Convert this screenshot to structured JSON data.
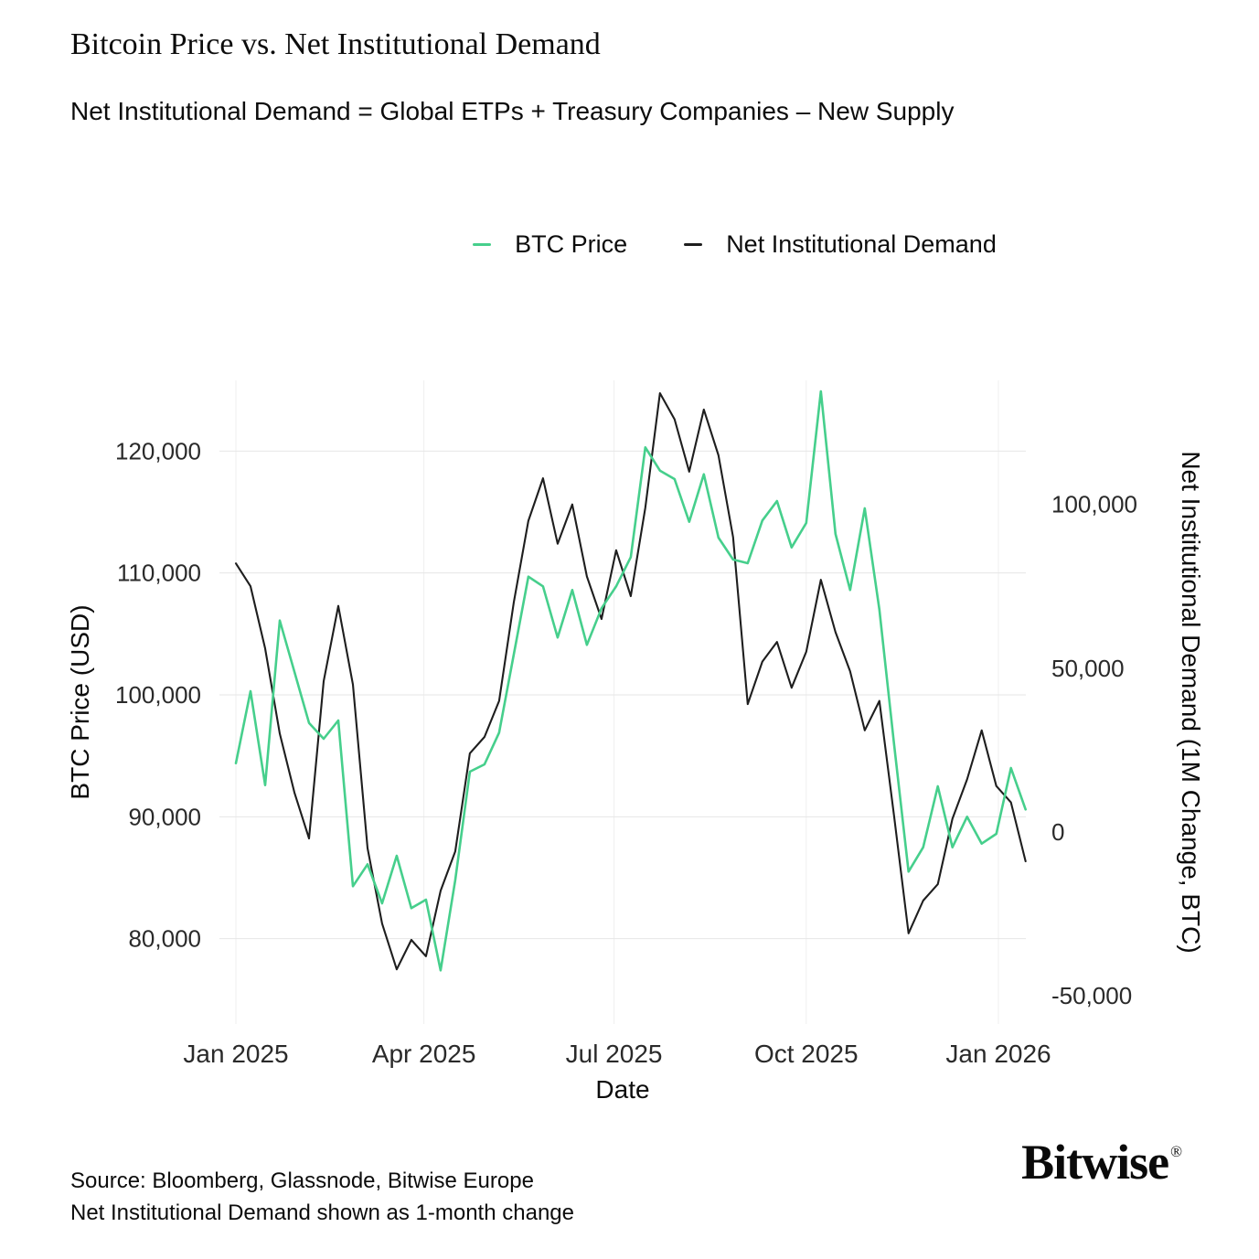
{
  "footer": {
    "source_line": "Source: Bloomberg, Glassnode, Bitwise Europe",
    "note_line": "Net Institutional Demand shown as 1-month change",
    "brand": "Bitwise",
    "brand_mark": "®"
  },
  "chart_data": {
    "type": "line",
    "title": "Bitcoin Price vs. Net Institutional Demand",
    "subtitle": "Net Institutional Demand = Global ETPs + Treasury Companies – New Supply",
    "xlabel": "Date",
    "legend_position": "top-center",
    "grid": {
      "horizontal": true,
      "vertical": true,
      "color": "#e6e6e6",
      "vcolor": "#efefef"
    },
    "x_ticks": [
      {
        "label": "Jan 2025",
        "day": 0
      },
      {
        "label": "Apr 2025",
        "day": 90
      },
      {
        "label": "Jul 2025",
        "day": 181
      },
      {
        "label": "Oct 2025",
        "day": 273
      },
      {
        "label": "Jan 2026",
        "day": 365
      }
    ],
    "points_start_date": "2025-01-01",
    "points_interval_days": 7,
    "total_days": 378,
    "left_axis": {
      "title": "BTC Price (USD)",
      "min": 73000,
      "max": 125800,
      "ticks": [
        120000,
        110000,
        100000,
        90000,
        80000
      ]
    },
    "right_axis": {
      "title": "Net Institutional Demand (1M Change, BTC)",
      "min": -58700,
      "max": 137900,
      "ticks": [
        100000,
        50000,
        0,
        -50000
      ]
    },
    "series": [
      {
        "name": "BTC Price",
        "axis": "left",
        "color": "#46cf8c",
        "values": [
          94400,
          100300,
          92600,
          106100,
          101900,
          97700,
          96400,
          97900,
          84300,
          86100,
          82900,
          86800,
          82500,
          83200,
          77400,
          84800,
          93700,
          94300,
          96900,
          103300,
          109700,
          108900,
          104700,
          108600,
          104100,
          107100,
          108900,
          111300,
          120300,
          118400,
          117700,
          114200,
          118100,
          112900,
          111100,
          110800,
          114300,
          115900,
          112100,
          114100,
          124900,
          113200,
          108600,
          115300,
          107000,
          96000,
          85500,
          87500,
          92500,
          87500,
          90000,
          87800,
          88600,
          94000,
          90600
        ]
      },
      {
        "name": "Net Institutional Demand",
        "axis": "right",
        "color": "#1e1e1e",
        "values": [
          82000,
          75000,
          56000,
          30000,
          12000,
          -2000,
          46000,
          69000,
          45000,
          -5000,
          -28000,
          -42000,
          -33000,
          -38000,
          -18000,
          -6000,
          24000,
          29000,
          40000,
          70000,
          95000,
          108000,
          88000,
          100000,
          78000,
          65000,
          86000,
          72000,
          99000,
          134000,
          126000,
          110000,
          129000,
          115000,
          90000,
          39000,
          52000,
          58000,
          44000,
          55000,
          77000,
          61000,
          49000,
          31000,
          40000,
          5000,
          -31000,
          -21000,
          -16000,
          4000,
          16000,
          31000,
          14000,
          9000,
          -9000
        ]
      }
    ]
  }
}
